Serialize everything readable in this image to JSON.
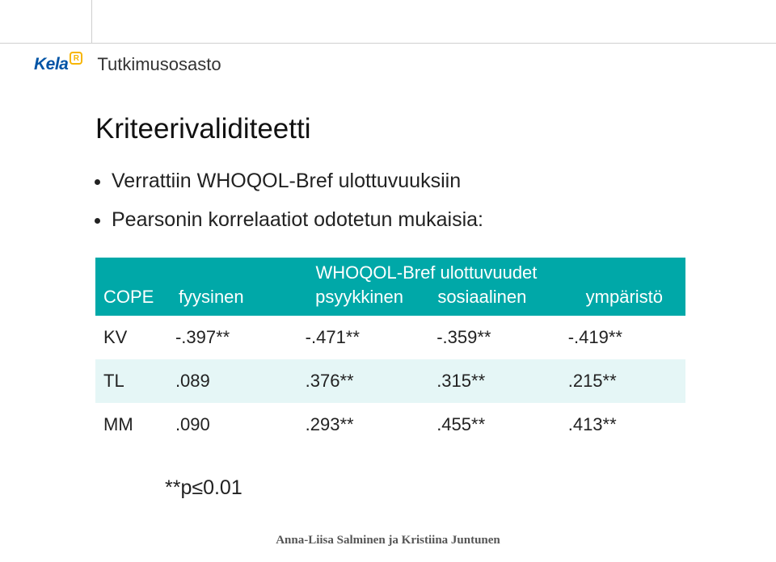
{
  "header": {
    "logo_text": "Kela",
    "logo_badge": "R",
    "department": "Tutkimusosasto"
  },
  "content": {
    "title": "Kriteerivaliditeetti",
    "bullets": [
      "Verrattiin WHOQOL-Bref ulottuvuuksiin",
      "Pearsonin korrelaatiot odotetun mukaisia:"
    ]
  },
  "table": {
    "header_top_right": "WHOQOL-Bref ulottuvuudet",
    "header_cope": "COPE",
    "subheaders": [
      "fyysinen",
      "psyykkinen",
      "sosiaalinen",
      "ympäristö"
    ],
    "rows": [
      {
        "label": "KV",
        "cells": [
          "-.397**",
          "-.471**",
          "-.359**",
          "-.419**"
        ]
      },
      {
        "label": "TL",
        "cells": [
          ".089",
          ".376**",
          ".315**",
          ".215**"
        ]
      },
      {
        "label": "MM",
        "cells": [
          ".090",
          ".293**",
          ".455**",
          ".413**"
        ]
      }
    ],
    "footnote": "**p≤0.01"
  },
  "footer": {
    "text": "Anna-Liisa Salminen ja Kristiina Juntunen"
  },
  "colors": {
    "teal": "#00a8a8",
    "teal_light": "#e5f6f6",
    "logo_blue": "#0054a6",
    "logo_yellow": "#f7b500"
  }
}
